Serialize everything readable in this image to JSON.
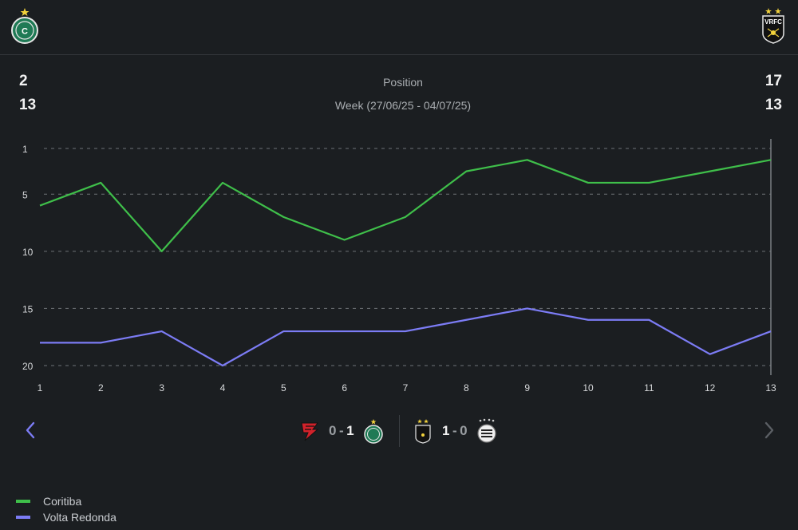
{
  "header": {
    "home_team": "Coritiba",
    "away_team": "Volta Redonda",
    "home_crest_text": "C",
    "away_crest_text": "VRFC"
  },
  "stats": {
    "left_values": [
      "2",
      "13"
    ],
    "right_values": [
      "17",
      "13"
    ],
    "label": "Position",
    "week_label": "Week (27/06/25 - 04/07/25)"
  },
  "matches": [
    {
      "home_crest": "athletico-crest",
      "score_home": "0",
      "score_away": "1",
      "away_crest": "coritiba-crest"
    },
    {
      "home_crest": "volta-redonda-crest",
      "score_home": "1",
      "score_away": "0",
      "away_crest": "opponent-crest"
    }
  ],
  "legend": [
    {
      "label": "Coritiba",
      "color": "#3fbf4a"
    },
    {
      "label": "Volta Redonda",
      "color": "#7c7cf5"
    }
  ],
  "chart_data": {
    "type": "line",
    "title": "Position",
    "x": [
      1,
      2,
      3,
      4,
      5,
      6,
      7,
      8,
      9,
      10,
      11,
      12,
      13
    ],
    "y_ticks": [
      1,
      5,
      10,
      15,
      20
    ],
    "ylim": [
      1,
      20
    ],
    "y_inverted": true,
    "series": [
      {
        "name": "Coritiba",
        "color": "#3fbf4a",
        "values": [
          6,
          4,
          10,
          4,
          7,
          9,
          7,
          3,
          2,
          4,
          4,
          3,
          2
        ]
      },
      {
        "name": "Volta Redonda",
        "color": "#7c7cf5",
        "values": [
          18,
          18,
          17,
          20,
          17,
          17,
          17,
          16,
          15,
          16,
          16,
          19,
          17
        ]
      }
    ]
  }
}
